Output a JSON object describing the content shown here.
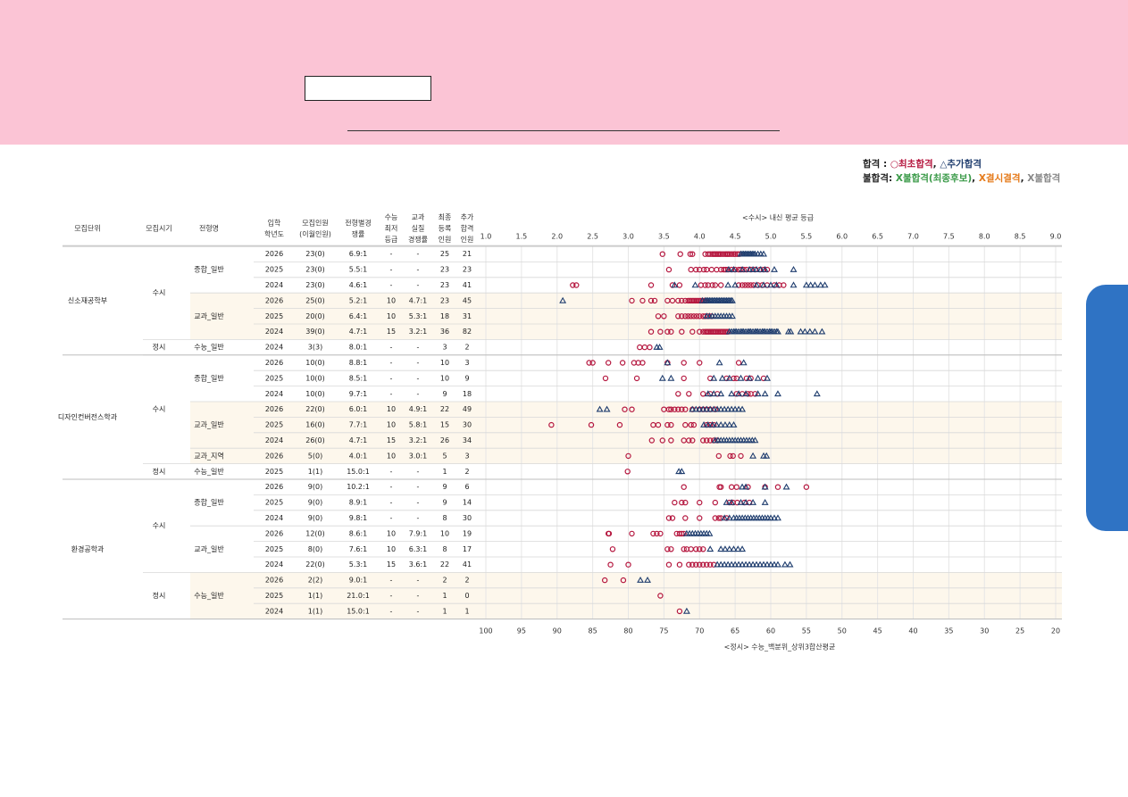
{
  "legend": {
    "pass_label": "합격",
    "pass_colon": " : ",
    "first_label": "○최초합격",
    "sep1": ", ",
    "extra_label": "△추가합격",
    "fail_label": "불합격:",
    "fail_final_label": "X불합격(최종후보)",
    "sep2": ", ",
    "absent_label": "X결시결격",
    "sep3": ", ",
    "fail_label2": "X불합격",
    "colors": {
      "first": "#b5173f",
      "extra": "#1f3d6e",
      "fail_final": "#3a9a48",
      "absent": "#e57a1a",
      "fail": "#888888",
      "row_shade": "#fdf7ec"
    }
  },
  "table": {
    "headers": {
      "unit": "모집단위",
      "period": "모집시기",
      "type": "전형명",
      "year": [
        "입학",
        "학년도"
      ],
      "quota": [
        "모집인원",
        "(이월인원)"
      ],
      "rate": [
        "전형별경",
        "쟁률"
      ],
      "min": [
        "수능",
        "최저",
        "등급"
      ],
      "real": [
        "교과",
        "실질",
        "경쟁률"
      ],
      "reg": [
        "최종",
        "등록",
        "인원"
      ],
      "extra": [
        "추가",
        "합격",
        "인원"
      ]
    },
    "units": [
      {
        "name": "신소재공학부",
        "rows": [
          0,
          6
        ]
      },
      {
        "name": "디자인컨버전스학과",
        "rows": [
          7,
          14
        ]
      },
      {
        "name": "환경공학과",
        "rows": [
          15,
          23
        ]
      }
    ],
    "periods": [
      {
        "name": "수시",
        "rows": [
          0,
          5
        ]
      },
      {
        "name": "정시",
        "rows": [
          6,
          6
        ]
      },
      {
        "name": "수시",
        "rows": [
          7,
          13
        ]
      },
      {
        "name": "정시",
        "rows": [
          14,
          14
        ]
      },
      {
        "name": "수시",
        "rows": [
          15,
          20
        ]
      },
      {
        "name": "정시",
        "rows": [
          21,
          23
        ]
      }
    ],
    "types": [
      {
        "name": "종합_일반",
        "rows": [
          0,
          2
        ],
        "shade": false
      },
      {
        "name": "교과_일반",
        "rows": [
          3,
          5
        ],
        "shade": true
      },
      {
        "name": "수능_일반",
        "rows": [
          6,
          6
        ],
        "shade": false
      },
      {
        "name": "종합_일반",
        "rows": [
          7,
          9
        ],
        "shade": false
      },
      {
        "name": "교과_일반",
        "rows": [
          10,
          12
        ],
        "shade": true
      },
      {
        "name": "교과_지역",
        "rows": [
          13,
          13
        ],
        "shade": true
      },
      {
        "name": "수능_일반",
        "rows": [
          14,
          14
        ],
        "shade": false
      },
      {
        "name": "종합_일반",
        "rows": [
          15,
          17
        ],
        "shade": false
      },
      {
        "name": "교과_일반",
        "rows": [
          18,
          20
        ],
        "shade": false
      },
      {
        "name": "수능_일반",
        "rows": [
          21,
          23
        ],
        "shade": true
      }
    ],
    "rows": [
      {
        "year": "2026",
        "quota": "23(0)",
        "rate": "6.9:1",
        "min": "-",
        "real": "-",
        "reg": "25",
        "extra": "21"
      },
      {
        "year": "2025",
        "quota": "23(0)",
        "rate": "5.5:1",
        "min": "-",
        "real": "-",
        "reg": "23",
        "extra": "23"
      },
      {
        "year": "2024",
        "quota": "23(0)",
        "rate": "4.6:1",
        "min": "-",
        "real": "-",
        "reg": "23",
        "extra": "41"
      },
      {
        "year": "2026",
        "quota": "25(0)",
        "rate": "5.2:1",
        "min": "10",
        "real": "4.7:1",
        "reg": "23",
        "extra": "45"
      },
      {
        "year": "2025",
        "quota": "20(0)",
        "rate": "6.4:1",
        "min": "10",
        "real": "5.3:1",
        "reg": "18",
        "extra": "31"
      },
      {
        "year": "2024",
        "quota": "39(0)",
        "rate": "4.7:1",
        "min": "15",
        "real": "3.2:1",
        "reg": "36",
        "extra": "82"
      },
      {
        "year": "2024",
        "quota": "3(3)",
        "rate": "8.0:1",
        "min": "-",
        "real": "-",
        "reg": "3",
        "extra": "2"
      },
      {
        "year": "2026",
        "quota": "10(0)",
        "rate": "8.8:1",
        "min": "-",
        "real": "-",
        "reg": "10",
        "extra": "3"
      },
      {
        "year": "2025",
        "quota": "10(0)",
        "rate": "8.5:1",
        "min": "-",
        "real": "-",
        "reg": "10",
        "extra": "9"
      },
      {
        "year": "2024",
        "quota": "10(0)",
        "rate": "9.7:1",
        "min": "-",
        "real": "-",
        "reg": "9",
        "extra": "18"
      },
      {
        "year": "2026",
        "quota": "22(0)",
        "rate": "6.0:1",
        "min": "10",
        "real": "4.9:1",
        "reg": "22",
        "extra": "49"
      },
      {
        "year": "2025",
        "quota": "16(0)",
        "rate": "7.7:1",
        "min": "10",
        "real": "5.8:1",
        "reg": "15",
        "extra": "30"
      },
      {
        "year": "2024",
        "quota": "26(0)",
        "rate": "4.7:1",
        "min": "15",
        "real": "3.2:1",
        "reg": "26",
        "extra": "34"
      },
      {
        "year": "2026",
        "quota": "5(0)",
        "rate": "4.0:1",
        "min": "10",
        "real": "3.0:1",
        "reg": "5",
        "extra": "3"
      },
      {
        "year": "2025",
        "quota": "1(1)",
        "rate": "15.0:1",
        "min": "-",
        "real": "-",
        "reg": "1",
        "extra": "2"
      },
      {
        "year": "2026",
        "quota": "9(0)",
        "rate": "10.2:1",
        "min": "-",
        "real": "-",
        "reg": "9",
        "extra": "6"
      },
      {
        "year": "2025",
        "quota": "9(0)",
        "rate": "8.9:1",
        "min": "-",
        "real": "-",
        "reg": "9",
        "extra": "14"
      },
      {
        "year": "2024",
        "quota": "9(0)",
        "rate": "9.8:1",
        "min": "-",
        "real": "-",
        "reg": "8",
        "extra": "30"
      },
      {
        "year": "2026",
        "quota": "12(0)",
        "rate": "8.6:1",
        "min": "10",
        "real": "7.9:1",
        "reg": "10",
        "extra": "19"
      },
      {
        "year": "2025",
        "quota": "8(0)",
        "rate": "7.6:1",
        "min": "10",
        "real": "6.3:1",
        "reg": "8",
        "extra": "17"
      },
      {
        "year": "2024",
        "quota": "22(0)",
        "rate": "5.3:1",
        "min": "15",
        "real": "3.6:1",
        "reg": "22",
        "extra": "41"
      },
      {
        "year": "2026",
        "quota": "2(2)",
        "rate": "9.0:1",
        "min": "-",
        "real": "-",
        "reg": "2",
        "extra": "2"
      },
      {
        "year": "2025",
        "quota": "1(1)",
        "rate": "21.0:1",
        "min": "-",
        "real": "-",
        "reg": "1",
        "extra": "0"
      },
      {
        "year": "2024",
        "quota": "1(1)",
        "rate": "15.0:1",
        "min": "-",
        "real": "-",
        "reg": "1",
        "extra": "1"
      }
    ]
  },
  "chart_data": {
    "type": "scatter",
    "top_axis_title": "<수시> 내신 평균 등급",
    "bottom_axis_title": "<정시> 수능_백분위_상위3합산평균",
    "top_ticks": [
      "1.0",
      "1.5",
      "2.0",
      "2.5",
      "3.0",
      "3.5",
      "4.0",
      "4.5",
      "5.0",
      "5.5",
      "6.0",
      "6.5",
      "7.0",
      "7.5",
      "8.0",
      "8.5",
      "9.0"
    ],
    "bottom_ticks": [
      "100",
      "95",
      "90",
      "85",
      "80",
      "75",
      "70",
      "65",
      "60",
      "55",
      "50",
      "45",
      "40",
      "35",
      "30",
      "25",
      "20"
    ],
    "top_range": [
      1.0,
      9.0
    ],
    "bottom_range": [
      100,
      20
    ],
    "grid": true,
    "rows": [
      {
        "row": 0,
        "scale": "grade",
        "first": [
          3.48,
          3.73,
          3.87,
          3.9,
          4.08,
          4.12,
          4.15,
          4.18,
          4.2,
          4.22,
          4.24,
          4.26,
          4.28,
          4.3,
          4.33,
          4.36,
          4.38,
          4.4,
          4.42,
          4.45,
          4.48,
          4.5,
          4.53,
          4.56
        ],
        "extra": [
          4.58,
          4.6,
          4.62,
          4.64,
          4.66,
          4.68,
          4.7,
          4.72,
          4.74,
          4.76,
          4.78,
          4.82,
          4.86,
          4.9
        ]
      },
      {
        "row": 1,
        "scale": "grade",
        "first": [
          3.57,
          3.88,
          3.95,
          4.0,
          4.06,
          4.1,
          4.17,
          4.24,
          4.3,
          4.34,
          4.37,
          4.4,
          4.45,
          4.5,
          4.55,
          4.58,
          4.62,
          4.66,
          4.72,
          4.78,
          4.85,
          4.9,
          4.95
        ],
        "extra": [
          4.41,
          4.48,
          4.6,
          4.7,
          4.75,
          4.8,
          4.86,
          4.92,
          5.05,
          5.32
        ]
      },
      {
        "row": 2,
        "scale": "grade",
        "first": [
          2.22,
          2.27,
          3.32,
          3.62,
          3.72,
          4.02,
          4.08,
          4.12,
          4.18,
          4.22,
          4.3,
          4.55,
          4.6,
          4.64,
          4.68,
          4.72,
          4.76,
          4.82,
          4.88,
          4.95,
          5.05,
          5.12,
          5.18
        ],
        "extra": [
          3.65,
          3.94,
          4.4,
          4.5,
          4.8,
          4.9,
          5.0,
          5.08,
          5.32,
          5.5,
          5.56,
          5.62,
          5.7,
          5.76
        ]
      },
      {
        "row": 3,
        "scale": "grade",
        "first": [
          3.05,
          3.2,
          3.32,
          3.37,
          3.55,
          3.62,
          3.7,
          3.75,
          3.8,
          3.84,
          3.86,
          3.88,
          3.9,
          3.92,
          3.94,
          3.96,
          3.98,
          4.0,
          4.02,
          4.04,
          4.06,
          4.08,
          4.1
        ],
        "extra": [
          2.08,
          4.04,
          4.08,
          4.1,
          4.12,
          4.14,
          4.16,
          4.18,
          4.2,
          4.22,
          4.24,
          4.26,
          4.28,
          4.3,
          4.32,
          4.34,
          4.36,
          4.38,
          4.4,
          4.42,
          4.44,
          4.46
        ]
      },
      {
        "row": 4,
        "scale": "grade",
        "first": [
          3.42,
          3.5,
          3.7,
          3.75,
          3.8,
          3.84,
          3.88,
          3.92,
          3.96,
          4.0,
          4.05,
          4.08,
          4.12,
          4.17
        ],
        "extra": [
          4.1,
          4.14,
          4.18,
          4.22,
          4.26,
          4.3,
          4.34,
          4.38,
          4.42,
          4.46
        ]
      },
      {
        "row": 5,
        "scale": "grade",
        "first": [
          3.32,
          3.45,
          3.55,
          3.6,
          3.75,
          3.9,
          4.0,
          4.05,
          4.08,
          4.1,
          4.12,
          4.14,
          4.16,
          4.18,
          4.2,
          4.22,
          4.24,
          4.26,
          4.28,
          4.3,
          4.32,
          4.34,
          4.36,
          4.38,
          4.4
        ],
        "extra": [
          4.42,
          4.45,
          4.48,
          4.5,
          4.52,
          4.55,
          4.58,
          4.6,
          4.62,
          4.65,
          4.68,
          4.7,
          4.72,
          4.75,
          4.78,
          4.8,
          4.82,
          4.85,
          4.88,
          4.9,
          4.92,
          4.95,
          4.98,
          5.0,
          5.02,
          5.05,
          5.08,
          5.1,
          5.25,
          5.28,
          5.42,
          5.48,
          5.55,
          5.62,
          5.72
        ]
      },
      {
        "row": 6,
        "scale": "pct",
        "first": [
          78.4,
          77.7,
          77.0
        ],
        "extra": [
          76.0,
          75.6
        ]
      },
      {
        "row": 7,
        "scale": "grade",
        "first": [
          2.45,
          2.5,
          2.72,
          2.92,
          3.08,
          3.14,
          3.2,
          3.55,
          3.78,
          4.0,
          4.55
        ],
        "extra": [
          3.55,
          4.28,
          4.62
        ]
      },
      {
        "row": 8,
        "scale": "grade",
        "first": [
          2.68,
          3.12,
          3.78,
          4.15,
          4.38,
          4.48,
          4.52,
          4.66,
          4.72,
          4.9
        ],
        "extra": [
          3.48,
          3.6,
          4.2,
          4.32,
          4.42,
          4.58,
          4.7,
          4.82,
          4.95
        ]
      },
      {
        "row": 9,
        "scale": "grade",
        "first": [
          3.7,
          3.85,
          4.05,
          4.15,
          4.25,
          4.52,
          4.6,
          4.68,
          4.72,
          4.78
        ],
        "extra": [
          4.12,
          4.2,
          4.3,
          4.45,
          4.55,
          4.65,
          4.82,
          4.92,
          5.1,
          5.65
        ]
      },
      {
        "row": 10,
        "scale": "grade",
        "first": [
          2.95,
          3.05,
          3.5,
          3.57,
          3.6,
          3.65,
          3.7,
          3.75,
          3.8,
          3.9,
          4.0,
          4.05,
          4.1,
          4.15,
          4.22
        ],
        "extra": [
          2.6,
          2.7,
          3.9,
          3.95,
          4.0,
          4.05,
          4.1,
          4.15,
          4.2,
          4.25,
          4.3,
          4.35,
          4.4,
          4.45,
          4.5,
          4.55,
          4.6
        ]
      },
      {
        "row": 11,
        "scale": "grade",
        "first": [
          1.92,
          2.48,
          2.88,
          3.35,
          3.42,
          3.55,
          3.6,
          3.8,
          3.88,
          3.92,
          4.1,
          4.15,
          4.2
        ],
        "extra": [
          4.06,
          4.12,
          4.18,
          4.24,
          4.3,
          4.36,
          4.42,
          4.48
        ]
      },
      {
        "row": 12,
        "scale": "grade",
        "first": [
          3.33,
          3.48,
          3.6,
          3.78,
          3.85,
          3.9,
          4.05,
          4.1,
          4.15,
          4.2,
          4.25
        ],
        "extra": [
          4.22,
          4.26,
          4.3,
          4.34,
          4.38,
          4.42,
          4.46,
          4.5,
          4.54,
          4.58,
          4.62,
          4.66,
          4.7,
          4.74,
          4.78
        ]
      },
      {
        "row": 13,
        "scale": "grade",
        "first": [
          3.0,
          4.27,
          4.43,
          4.47,
          4.58
        ],
        "extra": [
          4.75,
          4.9,
          4.94
        ]
      },
      {
        "row": 14,
        "scale": "pct",
        "first": [
          80.1
        ],
        "extra": [
          72.9,
          72.5
        ]
      },
      {
        "row": 15,
        "scale": "grade",
        "first": [
          3.78,
          4.28,
          4.3,
          4.45,
          4.52,
          4.68,
          4.92,
          5.1,
          5.5
        ],
        "extra": [
          4.6,
          4.65,
          4.92,
          5.22
        ]
      },
      {
        "row": 16,
        "scale": "grade",
        "first": [
          3.65,
          3.75,
          3.8,
          4.0,
          4.22,
          4.42,
          4.47,
          4.53,
          4.63,
          4.7
        ],
        "extra": [
          4.38,
          4.45,
          4.58,
          4.65,
          4.75,
          4.92
        ]
      },
      {
        "row": 17,
        "scale": "grade",
        "first": [
          3.57,
          3.62,
          3.8,
          4.0,
          4.22,
          4.27,
          4.3,
          4.38
        ],
        "extra": [
          4.35,
          4.42,
          4.48,
          4.52,
          4.56,
          4.6,
          4.64,
          4.68,
          4.72,
          4.76,
          4.8,
          4.84,
          4.88,
          4.92,
          4.96,
          5.0,
          5.05,
          5.1
        ]
      },
      {
        "row": 18,
        "scale": "grade",
        "first": [
          2.72,
          2.73,
          3.05,
          3.35,
          3.4,
          3.45,
          3.68,
          3.72,
          3.75,
          3.78
        ],
        "extra": [
          3.82,
          3.86,
          3.9,
          3.94,
          3.98,
          4.02,
          4.06,
          4.1,
          4.14
        ]
      },
      {
        "row": 19,
        "scale": "grade",
        "first": [
          2.78,
          3.55,
          3.6,
          3.78,
          3.82,
          3.88,
          3.95,
          4.0,
          4.05
        ],
        "extra": [
          4.15,
          4.3,
          4.36,
          4.42,
          4.48,
          4.54,
          4.6
        ]
      },
      {
        "row": 20,
        "scale": "grade",
        "first": [
          2.75,
          3.0,
          3.57,
          3.72,
          3.85,
          3.9,
          3.95,
          4.0,
          4.05,
          4.1,
          4.15,
          4.2
        ],
        "extra": [
          4.25,
          4.3,
          4.35,
          4.4,
          4.45,
          4.5,
          4.55,
          4.6,
          4.65,
          4.7,
          4.75,
          4.8,
          4.85,
          4.9,
          4.95,
          5.0,
          5.05,
          5.1,
          5.2,
          5.27
        ]
      },
      {
        "row": 21,
        "scale": "pct",
        "first": [
          83.3,
          80.7
        ],
        "extra": [
          78.3,
          77.3
        ]
      },
      {
        "row": 22,
        "scale": "pct",
        "first": [
          75.5
        ],
        "extra": []
      },
      {
        "row": 23,
        "scale": "pct",
        "first": [
          72.8
        ],
        "extra": [
          71.8
        ]
      }
    ]
  }
}
